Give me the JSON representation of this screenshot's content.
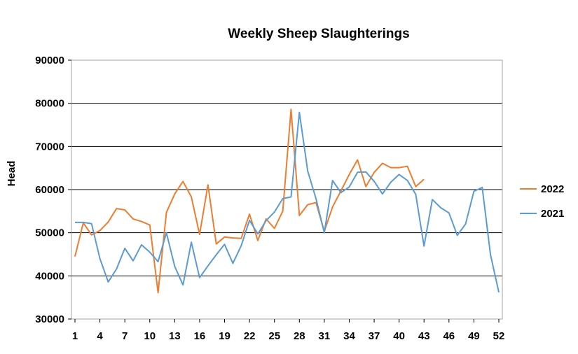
{
  "chart_data": {
    "type": "line",
    "title": "Weekly Sheep Slaughterings",
    "xlabel": "",
    "ylabel": "Head",
    "ylim": [
      30000,
      90000
    ],
    "yticks": [
      30000,
      40000,
      50000,
      60000,
      70000,
      80000,
      90000
    ],
    "ytick_labels": [
      "30000",
      "40000",
      "50000",
      "60000",
      "70000",
      "80000",
      "90000"
    ],
    "xlim": [
      1,
      52
    ],
    "xticks": [
      1,
      4,
      7,
      10,
      13,
      16,
      19,
      22,
      25,
      28,
      31,
      34,
      37,
      40,
      43,
      46,
      49,
      52
    ],
    "xtick_labels": [
      "1",
      "4",
      "7",
      "10",
      "13",
      "16",
      "19",
      "22",
      "25",
      "28",
      "31",
      "34",
      "37",
      "40",
      "43",
      "46",
      "49",
      "52"
    ],
    "grid": "horizontal",
    "legend_position": "right",
    "series": [
      {
        "name": "2022",
        "color": "#ED7D31",
        "x": [
          1,
          2,
          3,
          4,
          5,
          6,
          7,
          8,
          9,
          10,
          11,
          12,
          13,
          14,
          15,
          16,
          17,
          18,
          19,
          20,
          21,
          22,
          23,
          24,
          25,
          26,
          27,
          28,
          29,
          30,
          31,
          32,
          33,
          34,
          35,
          36,
          37,
          38,
          39,
          40,
          41,
          42,
          43
        ],
        "values": [
          44500,
          52300,
          49500,
          50500,
          52500,
          55600,
          55300,
          53200,
          52600,
          51800,
          36100,
          54700,
          59000,
          61900,
          58300,
          49600,
          61100,
          47400,
          49000,
          48800,
          48700,
          54300,
          48200,
          53200,
          51000,
          55000,
          78600,
          54000,
          56500,
          57000,
          50300,
          56000,
          59700,
          63500,
          66900,
          60700,
          64000,
          66100,
          65100,
          65100,
          65400,
          60700,
          62400
        ]
      },
      {
        "name": "2021",
        "color": "#5B9BD5",
        "x": [
          1,
          2,
          3,
          4,
          5,
          6,
          7,
          8,
          9,
          10,
          11,
          12,
          13,
          14,
          15,
          16,
          17,
          18,
          19,
          20,
          21,
          22,
          23,
          24,
          25,
          26,
          27,
          28,
          29,
          30,
          31,
          32,
          33,
          34,
          35,
          36,
          37,
          38,
          39,
          40,
          41,
          42,
          43,
          44,
          45,
          46,
          47,
          48,
          49,
          50,
          51,
          52
        ],
        "values": [
          52400,
          52400,
          52100,
          44000,
          38600,
          41600,
          46400,
          43500,
          47200,
          45500,
          43300,
          50000,
          42200,
          37900,
          47800,
          39600,
          42300,
          44900,
          47300,
          42900,
          47000,
          52900,
          49700,
          52800,
          54800,
          57900,
          58300,
          77900,
          64300,
          57900,
          50000,
          62100,
          59300,
          60600,
          64000,
          64100,
          61900,
          59000,
          61700,
          63500,
          62100,
          58900,
          46900,
          57700,
          55800,
          54600,
          49400,
          52000,
          59600,
          60500,
          44900,
          36200
        ]
      }
    ]
  }
}
